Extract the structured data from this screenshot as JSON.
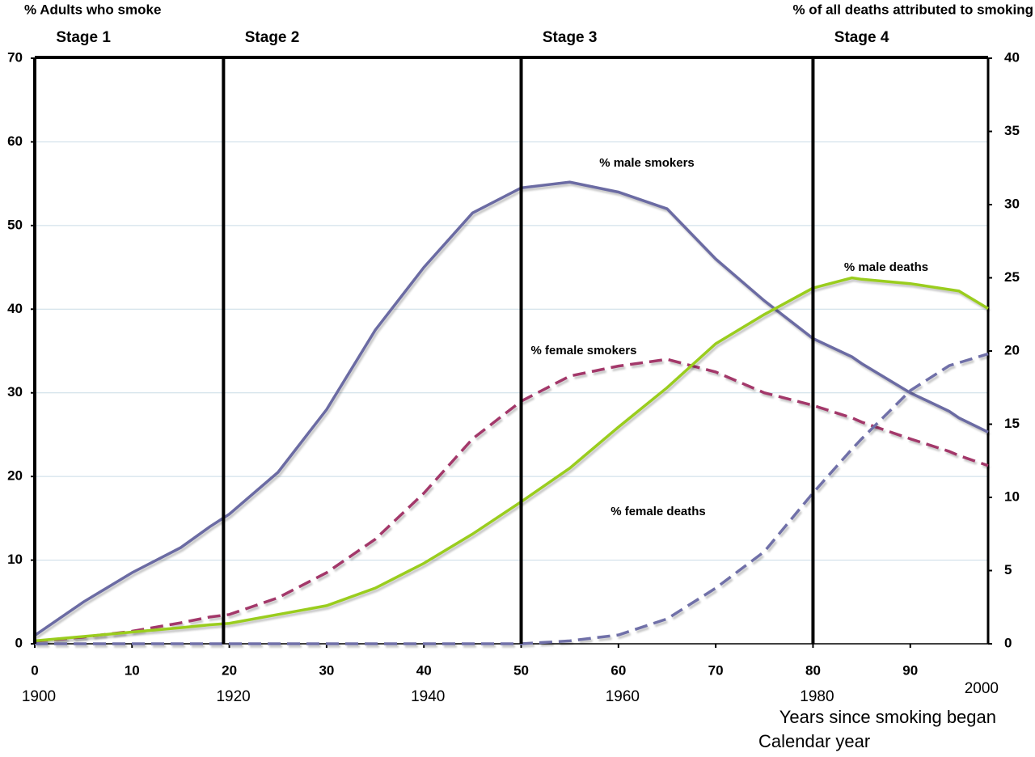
{
  "chart_data": {
    "type": "line",
    "ylabel": "% Adults who smoke",
    "y2label": "% of all deaths attributed to smoking",
    "xlabel": "Years since smoking began",
    "x2label": "Calendar year",
    "x": [
      0,
      5,
      10,
      15,
      18,
      20,
      25,
      30,
      35,
      40,
      45,
      50,
      55,
      60,
      65,
      70,
      75,
      80,
      84,
      85,
      90,
      94,
      95,
      98
    ],
    "series": [
      {
        "color": "#6b6ba3",
        "dashed": false,
        "axis": "y",
        "values": [
          1,
          5,
          8.5,
          11.5,
          14,
          15.5,
          20.5,
          28,
          37.5,
          45,
          51.5,
          54.5,
          55.2,
          54,
          52,
          46,
          41,
          36.5,
          34.3,
          33.5,
          30,
          27.8,
          27,
          25.3
        ]
      },
      {
        "color": "#a3386a",
        "dashed": true,
        "axis": "y",
        "values": [
          0.3,
          0.8,
          1.5,
          2.5,
          3.2,
          3.5,
          5.5,
          8.5,
          12.5,
          18,
          24.5,
          29,
          32,
          33.2,
          34,
          32.5,
          30,
          28.5,
          27,
          26.5,
          24.5,
          23,
          22.5,
          21.3
        ]
      },
      {
        "color": "#9acd1e",
        "dashed": false,
        "axis": "y2",
        "values": [
          0.2,
          0.5,
          0.8,
          1.1,
          1.3,
          1.4,
          2,
          2.6,
          3.8,
          5.5,
          7.5,
          9.7,
          12,
          14.8,
          17.5,
          20.5,
          22.5,
          24.3,
          25,
          24.9,
          24.6,
          24.2,
          24.1,
          22.9
        ]
      },
      {
        "color": "#7070a8",
        "dashed": true,
        "axis": "y2",
        "values": [
          0,
          0,
          0,
          0,
          0,
          0,
          0,
          0,
          0,
          0,
          0,
          0,
          0.2,
          0.6,
          1.7,
          3.8,
          6.3,
          10.3,
          13.3,
          14,
          17.3,
          19,
          19.2,
          19.8
        ]
      }
    ],
    "annotations": [
      "% male smokers",
      "% female smokers",
      "% male deaths",
      "% female deaths"
    ],
    "stages": [
      {
        "label": "Stage 1",
        "start": 0
      },
      {
        "label": "Stage 2",
        "start": 19.4
      },
      {
        "label": "Stage 3",
        "start": 50
      },
      {
        "label": "Stage 4",
        "start": 80
      }
    ],
    "xlim": [
      0,
      98
    ],
    "xticks": [
      0,
      10,
      20,
      30,
      40,
      50,
      60,
      70,
      80,
      90
    ],
    "x2ticks": [
      {
        "value": 0,
        "label": "1900"
      },
      {
        "value": 20,
        "label": "1920"
      },
      {
        "value": 40,
        "label": "1940"
      },
      {
        "value": 60,
        "label": "1960"
      },
      {
        "value": 80,
        "label": "1980"
      },
      {
        "value": 100,
        "label": "2000"
      }
    ],
    "ylim": [
      0,
      70
    ],
    "yticks": [
      0,
      10,
      20,
      30,
      40,
      50,
      60,
      70
    ],
    "y2lim": [
      0,
      40
    ],
    "y2ticks": [
      0,
      5,
      10,
      15,
      20,
      25,
      30,
      35,
      40
    ],
    "grid": true
  }
}
